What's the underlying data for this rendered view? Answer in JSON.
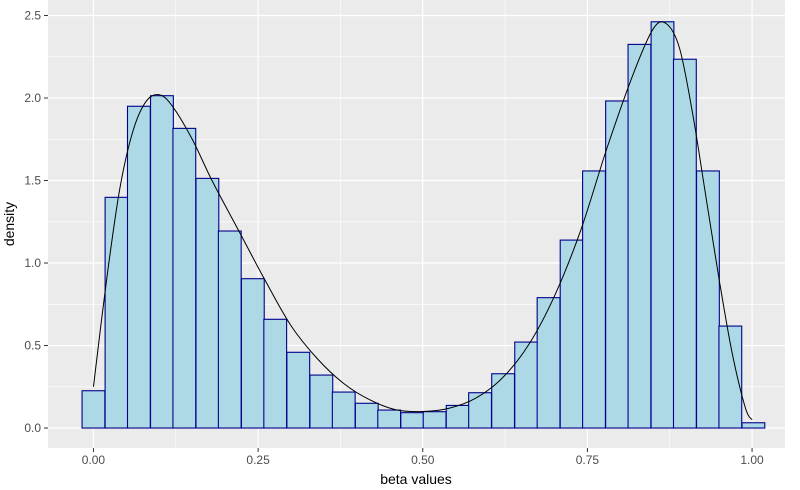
{
  "chart_data": {
    "type": "bar",
    "subtype": "histogram-with-density-line",
    "title": "",
    "xlabel": "beta values",
    "ylabel": "density",
    "xlim": [
      -0.069,
      1.05
    ],
    "ylim": [
      -0.121,
      2.594
    ],
    "xticks": [
      0,
      0.25,
      0.5,
      0.75,
      1.0
    ],
    "xtick_labels": [
      "0.00",
      "0.25",
      "0.50",
      "0.75",
      "1.00"
    ],
    "yticks": [
      0,
      0.5,
      1.0,
      1.5,
      2.0,
      2.5
    ],
    "ytick_labels": [
      "0.0",
      "0.5",
      "1.0",
      "1.5",
      "2.0",
      "2.5"
    ],
    "grid": true,
    "bin_width": 0.0346,
    "bin_centers": [
      0.0,
      0.035,
      0.069,
      0.104,
      0.138,
      0.173,
      0.207,
      0.242,
      0.276,
      0.311,
      0.346,
      0.38,
      0.415,
      0.449,
      0.484,
      0.518,
      0.553,
      0.587,
      0.622,
      0.657,
      0.691,
      0.726,
      0.76,
      0.795,
      0.829,
      0.864,
      0.898,
      0.933,
      0.967,
      1.002
    ],
    "values": [
      0.226,
      1.398,
      1.95,
      2.014,
      1.816,
      1.513,
      1.194,
      0.905,
      0.659,
      0.459,
      0.321,
      0.218,
      0.15,
      0.109,
      0.093,
      0.099,
      0.137,
      0.214,
      0.329,
      0.521,
      0.79,
      1.139,
      1.558,
      1.982,
      2.325,
      2.462,
      2.235,
      1.558,
      0.618,
      0.032
    ],
    "density_line": {
      "x": [
        0.0,
        0.02,
        0.04,
        0.06,
        0.08,
        0.1,
        0.12,
        0.15,
        0.18,
        0.22,
        0.26,
        0.3,
        0.34,
        0.38,
        0.42,
        0.46,
        0.5,
        0.54,
        0.58,
        0.62,
        0.66,
        0.7,
        0.74,
        0.78,
        0.82,
        0.85,
        0.87,
        0.89,
        0.91,
        0.93,
        0.95,
        0.97,
        0.99,
        1.0
      ],
      "y": [
        0.25,
        0.9,
        1.45,
        1.8,
        1.98,
        2.02,
        1.95,
        1.75,
        1.5,
        1.2,
        0.9,
        0.62,
        0.42,
        0.27,
        0.17,
        0.11,
        0.1,
        0.12,
        0.18,
        0.3,
        0.5,
        0.8,
        1.2,
        1.7,
        2.15,
        2.42,
        2.45,
        2.3,
        1.9,
        1.4,
        0.9,
        0.45,
        0.12,
        0.05
      ]
    },
    "colors": {
      "panel": "#ebebeb",
      "grid": "#ffffff",
      "bar_fill": "#add8e6",
      "bar_edge": "#00008b",
      "line": "#000000"
    }
  }
}
